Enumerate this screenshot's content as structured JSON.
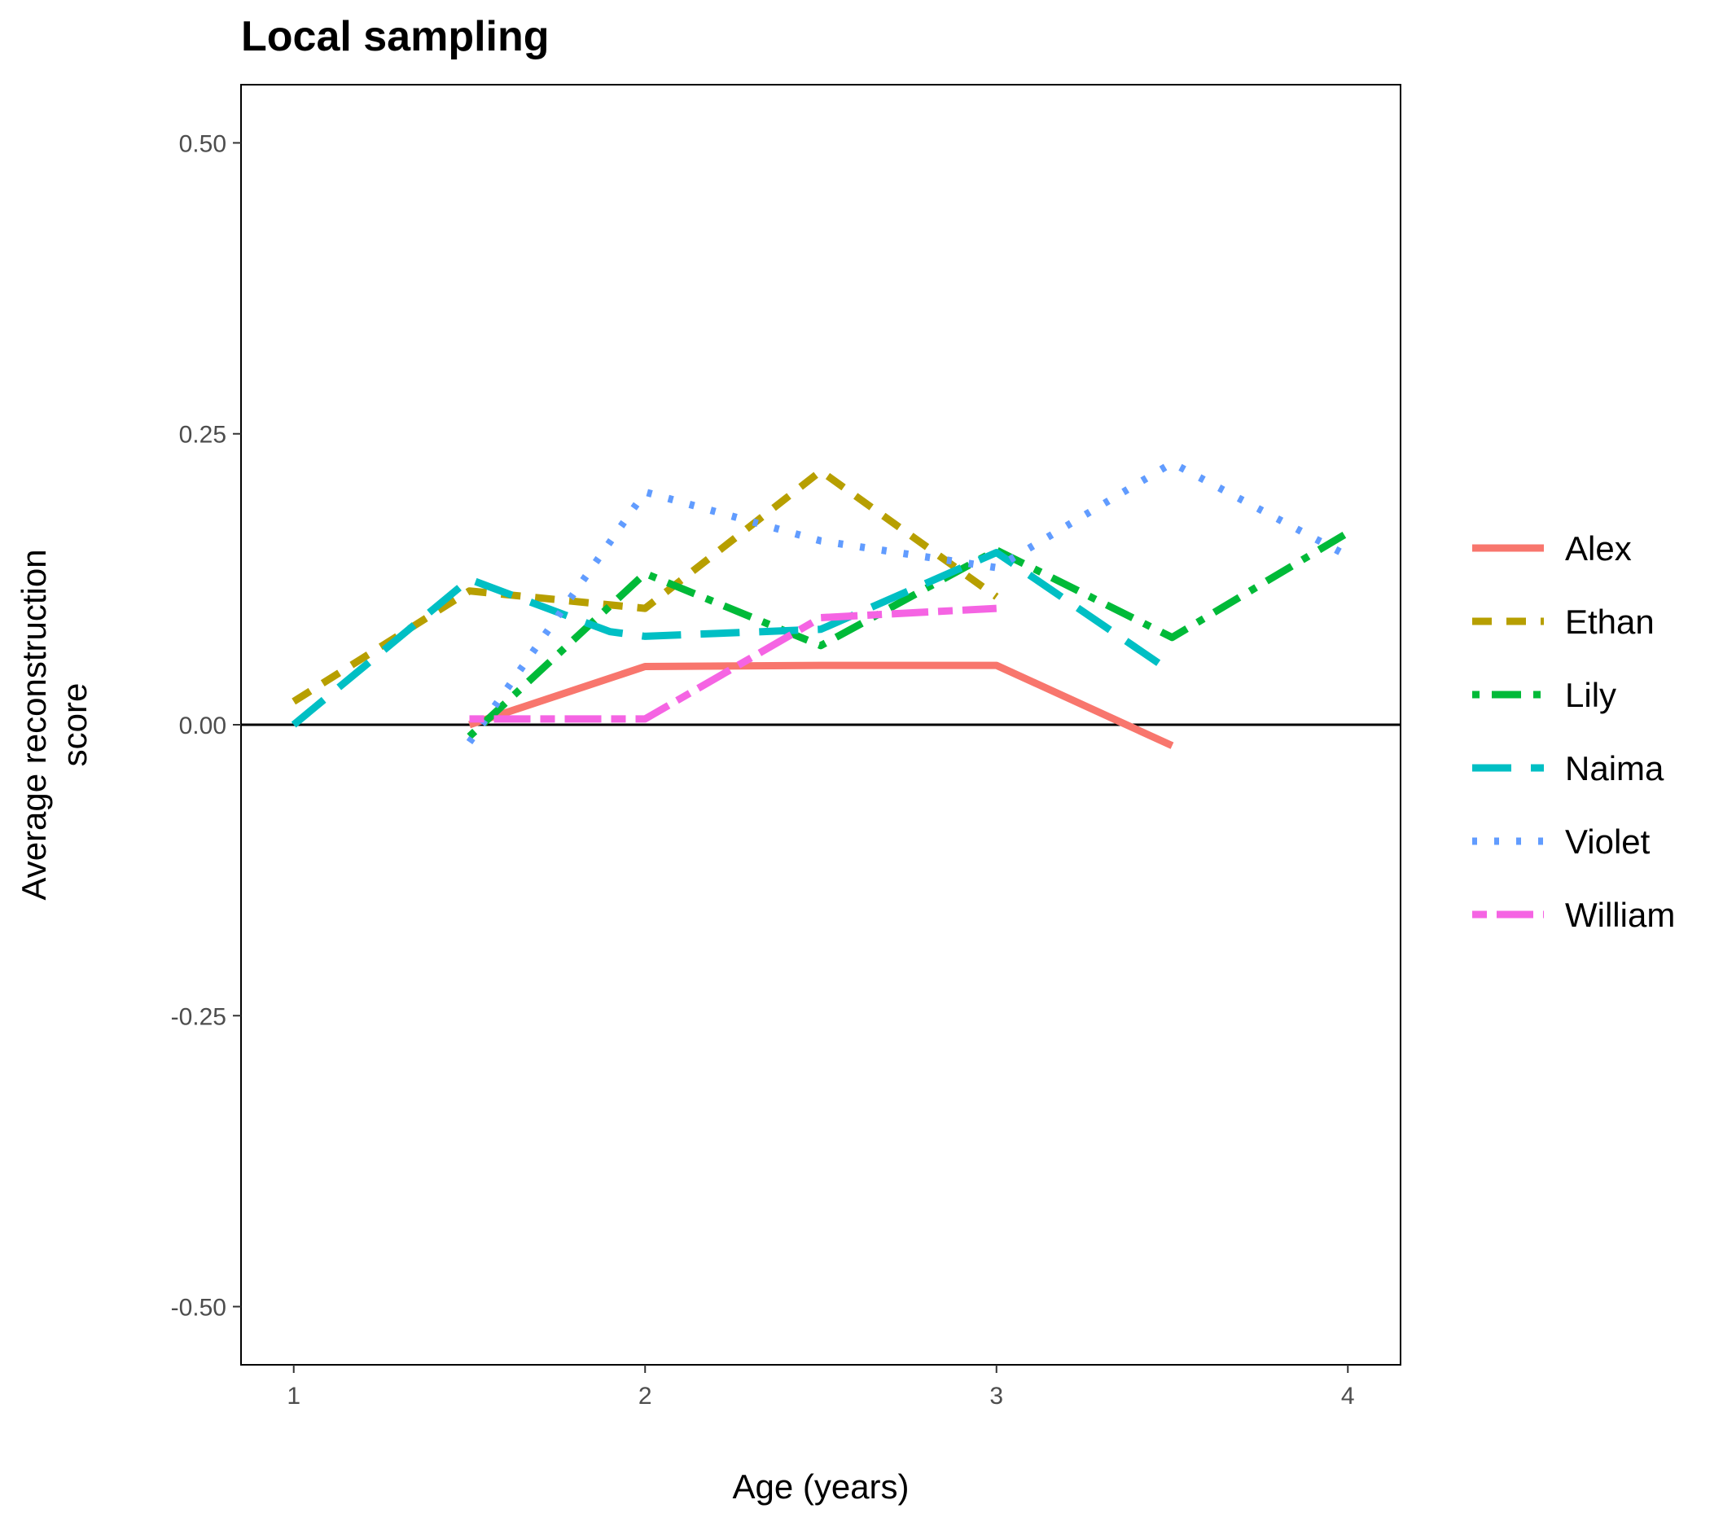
{
  "chart_data": {
    "type": "line",
    "title": "Local sampling",
    "xlabel": "Age (years)",
    "ylabel": [
      "Average reconstruction",
      "score"
    ],
    "xlim": [
      0.85,
      4.15
    ],
    "ylim": [
      -0.55,
      0.55
    ],
    "x_ticks": [
      1,
      2,
      3,
      4
    ],
    "x_tick_labels": [
      "1",
      "2",
      "3",
      "4"
    ],
    "y_ticks": [
      0.5,
      0.25,
      0,
      -0.25,
      -0.5
    ],
    "y_tick_labels": [
      "0.50",
      "0.25",
      "0.00",
      "-0.25",
      "-0.50"
    ],
    "reference_line_y": 0,
    "grid": false,
    "legend_position": "right",
    "series": [
      {
        "name": "Alex",
        "color": "#F8766D",
        "dash": "solid",
        "points": [
          [
            1.5,
            0.0
          ],
          [
            2.0,
            0.05
          ],
          [
            2.5,
            0.051
          ],
          [
            3.0,
            0.051
          ],
          [
            3.5,
            -0.018
          ]
        ]
      },
      {
        "name": "Ethan",
        "color": "#B79F00",
        "dash": "dashed",
        "points": [
          [
            1.0,
            0.02
          ],
          [
            1.5,
            0.115
          ],
          [
            2.0,
            0.1
          ],
          [
            2.5,
            0.218
          ],
          [
            3.0,
            0.11
          ]
        ]
      },
      {
        "name": "Lily",
        "color": "#00BA38",
        "dash": "dotdash",
        "points": [
          [
            1.5,
            -0.01
          ],
          [
            2.0,
            0.13
          ],
          [
            2.5,
            0.068
          ],
          [
            3.0,
            0.15
          ],
          [
            3.5,
            0.075
          ],
          [
            4.0,
            0.165
          ]
        ]
      },
      {
        "name": "Naima",
        "color": "#00BFC4",
        "dash": "longdash",
        "points": [
          [
            1.0,
            0.0
          ],
          [
            1.5,
            0.125
          ],
          [
            1.9,
            0.08
          ],
          [
            2.0,
            0.076
          ],
          [
            2.5,
            0.082
          ],
          [
            3.0,
            0.148
          ],
          [
            3.5,
            0.045
          ]
        ]
      },
      {
        "name": "Violet",
        "color": "#619CFF",
        "dash": "dotted",
        "points": [
          [
            1.5,
            -0.015
          ],
          [
            2.0,
            0.2
          ],
          [
            2.5,
            0.158
          ],
          [
            3.0,
            0.135
          ],
          [
            3.5,
            0.225
          ],
          [
            4.0,
            0.145
          ]
        ]
      },
      {
        "name": "William",
        "color": "#F564E3",
        "dash": "twodash",
        "points": [
          [
            1.5,
            0.005
          ],
          [
            2.0,
            0.005
          ],
          [
            2.5,
            0.092
          ],
          [
            3.0,
            0.1
          ]
        ]
      }
    ]
  }
}
